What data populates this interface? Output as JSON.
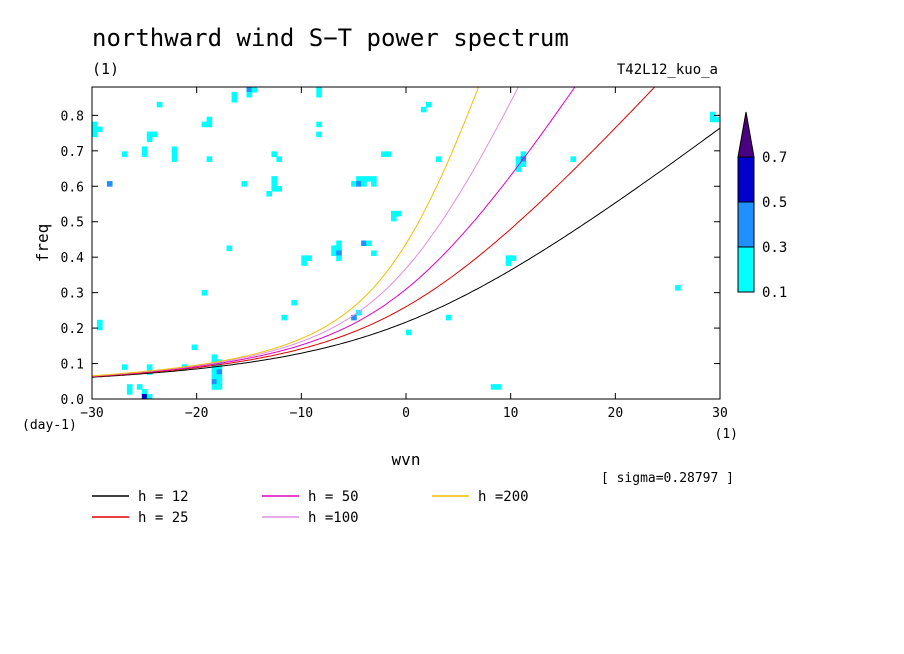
{
  "chart_data": {
    "type": "heatmap",
    "title": "northward wind S−T power spectrum",
    "subtitle_left": "(1)",
    "subtitle_right": "T42L12_kuo_a",
    "xlabel": "wvn",
    "ylabel": "freq",
    "x_unit": "(1)",
    "y_unit": "(day-1)",
    "xlim": [
      -30,
      30
    ],
    "ylim": [
      0,
      0.88
    ],
    "x_ticks": [
      "-30",
      "-20",
      "-10",
      "0",
      "10",
      "20",
      "30"
    ],
    "y_ticks": [
      "0.0",
      "0.1",
      "0.2",
      "0.3",
      "0.4",
      "0.5",
      "0.6",
      "0.7",
      "0.8"
    ],
    "sigma_text": "[ sigma=0.28797 ]",
    "colorbar": {
      "levels": [
        "0.1",
        "0.3",
        "0.5",
        "0.7"
      ],
      "colors": [
        "#00ffff",
        "#1e90ff",
        "#0000cd",
        "#4b0082"
      ]
    },
    "contour_levels": [
      0.1,
      0.3,
      0.5,
      0.7
    ],
    "curves": [
      {
        "label": "h = 12",
        "h": 12,
        "color": "#000000"
      },
      {
        "label": "h = 25",
        "h": 25,
        "color": "#e00000"
      },
      {
        "label": "h = 50",
        "h": 50,
        "color": "#e000c0"
      },
      {
        "label": "h =100",
        "h": 100,
        "color": "#e090e0"
      },
      {
        "label": "h =200",
        "h": 200,
        "color": "#f0c000"
      }
    ]
  }
}
